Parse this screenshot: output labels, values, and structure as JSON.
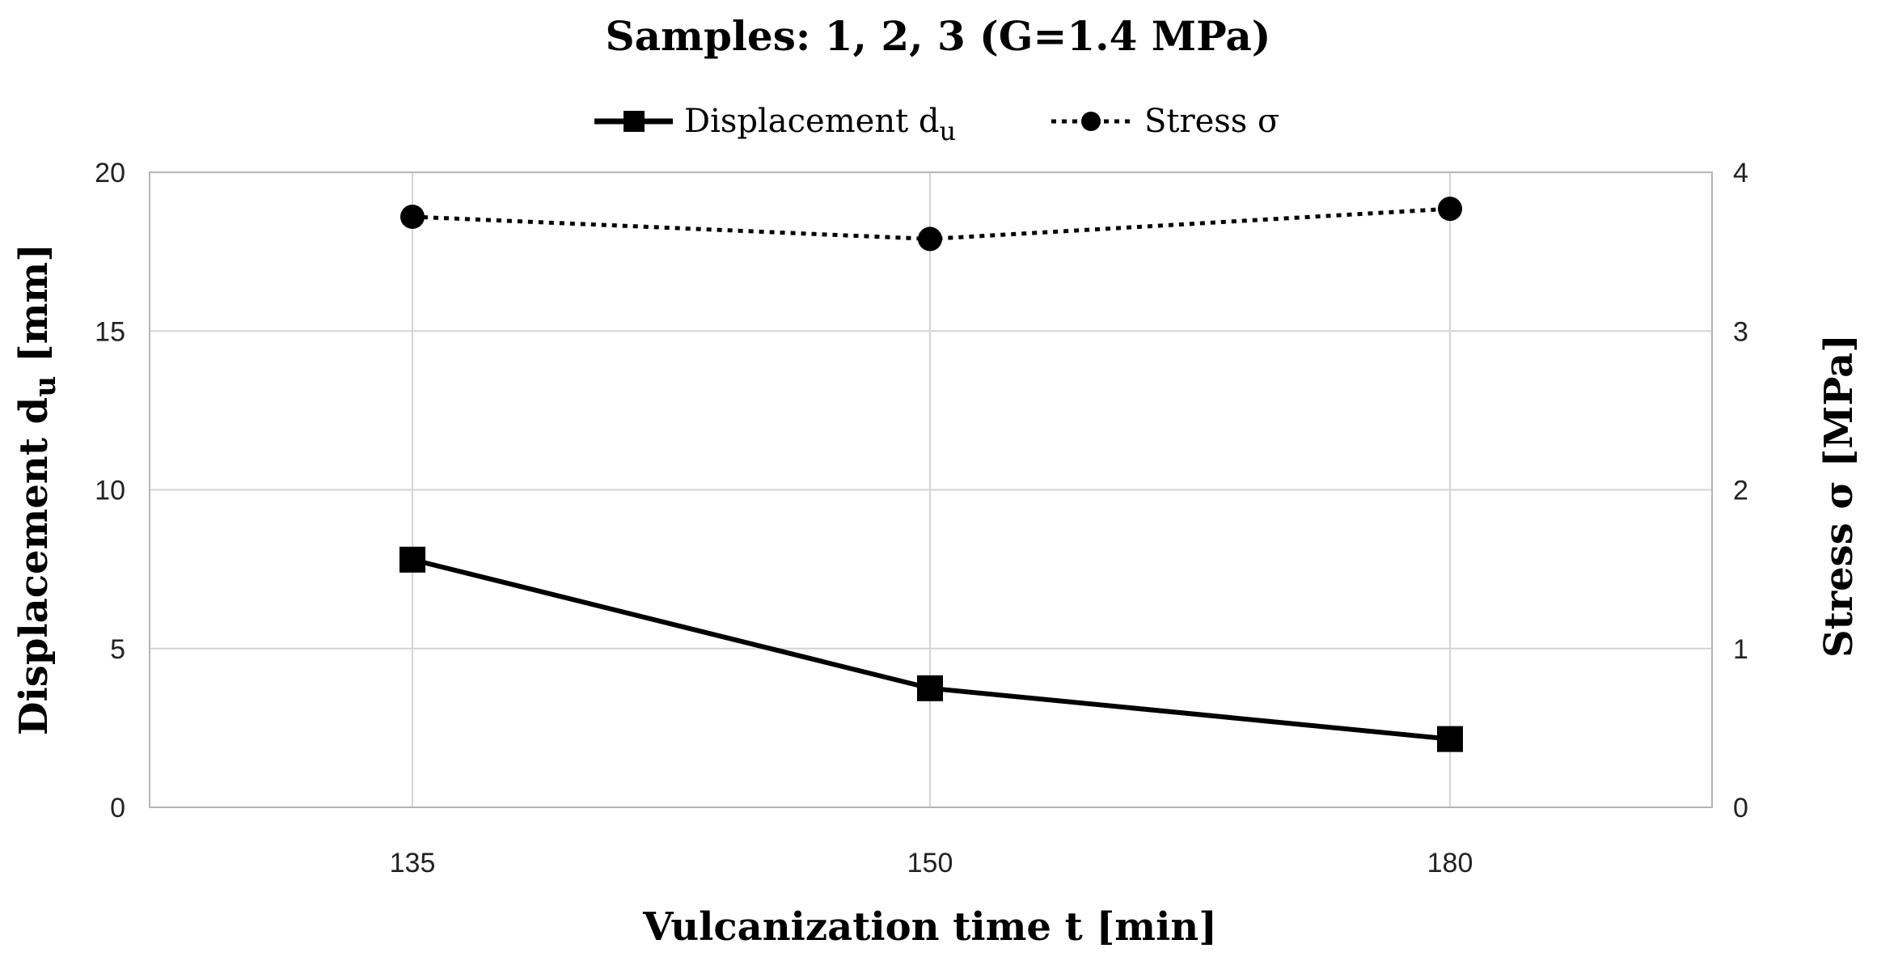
{
  "chart_data": {
    "type": "line",
    "title": "Samples: 1, 2, 3 (G=1.4 MPa)",
    "xlabel": "Vulcanization time t [min]",
    "ylabel_left": {
      "main": "Displacement d",
      "sub": "u",
      "unit": " [mm]"
    },
    "ylabel_right": "Stress σ [MPa]",
    "categories": [
      "135",
      "150",
      "180"
    ],
    "ylim_left": [
      0,
      20
    ],
    "yticks_left": [
      0,
      5,
      10,
      15,
      20
    ],
    "ylim_right": [
      0,
      4
    ],
    "yticks_right": [
      0,
      1,
      2,
      3,
      4
    ],
    "grid": true,
    "legend_position": "top",
    "series": [
      {
        "name": "Displacement d",
        "name_sub": "u",
        "axis": "left",
        "values": [
          7.8,
          3.75,
          2.15
        ],
        "line_style": "solid",
        "marker": "square",
        "color": "#000000"
      },
      {
        "name": "Stress σ",
        "axis": "right",
        "values": [
          3.72,
          3.58,
          3.77
        ],
        "line_style": "dotted",
        "marker": "circle",
        "color": "#000000"
      }
    ]
  }
}
